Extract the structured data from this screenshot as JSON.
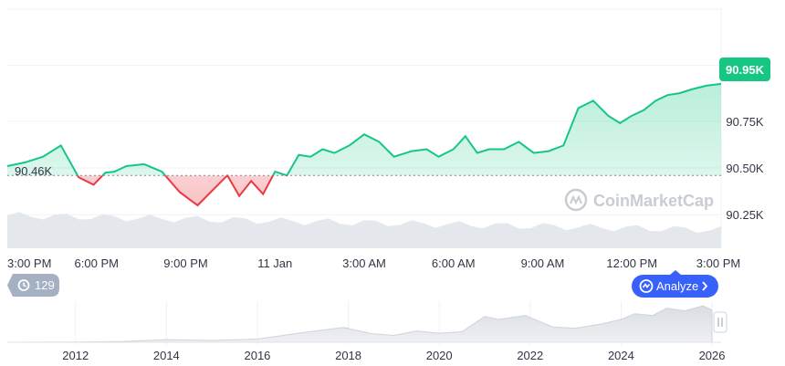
{
  "colors": {
    "up": "#16c784",
    "down": "#ea3943",
    "grid": "#eff2f5",
    "axis_text": "#58667e",
    "badge_bg": "#16c784",
    "analyze_bg": "#3861fb",
    "history_bg": "#a6b0c3"
  },
  "watermark": {
    "text": "CoinMarketCap",
    "icon": "coinmarketcap-logo-icon"
  },
  "history_badge": {
    "icon": "history-icon",
    "value": "129"
  },
  "analyze_button": {
    "icon": "analyze-icon",
    "label": "Analyze",
    "chevron": "chevron-right-icon"
  },
  "current_price_label": "90.95K",
  "reference_label": "90.46K",
  "chart_data": [
    {
      "type": "area",
      "title": "",
      "xlabel": "",
      "ylabel": "",
      "x_ticks": [
        "3:00 PM",
        "6:00 PM",
        "9:00 PM",
        "11 Jan",
        "3:00 AM",
        "6:00 AM",
        "9:00 AM",
        "12:00 PM",
        "3:00 PM"
      ],
      "x_range_hours": [
        0,
        24
      ],
      "y_ticks": [
        "90.25K",
        "90.50K",
        "90.75K"
      ],
      "y_tick_values": [
        90250,
        90500,
        90750
      ],
      "ylim": [
        90080,
        91350
      ],
      "grid": true,
      "reference_value": 90460,
      "current_value": 90950,
      "x": [
        0,
        0.6,
        1.2,
        1.8,
        2.4,
        2.9,
        3.3,
        3.6,
        4.0,
        4.6,
        5.2,
        5.8,
        6.4,
        6.9,
        7.4,
        7.8,
        8.2,
        8.6,
        9.0,
        9.4,
        9.8,
        10.2,
        10.6,
        11.0,
        11.5,
        12.0,
        12.5,
        13.0,
        13.6,
        14.1,
        14.5,
        15.0,
        15.4,
        15.8,
        16.2,
        16.7,
        17.2,
        17.7,
        18.2,
        18.7,
        19.2,
        19.7,
        20.2,
        20.6,
        21.0,
        21.4,
        21.8,
        22.2,
        22.6,
        23.0,
        23.5,
        24.0
      ],
      "values": [
        90510,
        90530,
        90560,
        90620,
        90450,
        90410,
        90475,
        90480,
        90510,
        90520,
        90480,
        90370,
        90300,
        90380,
        90460,
        90350,
        90430,
        90360,
        90480,
        90460,
        90570,
        90560,
        90600,
        90580,
        90620,
        90680,
        90640,
        90560,
        90590,
        90600,
        90560,
        90600,
        90670,
        90580,
        90600,
        90600,
        90640,
        90580,
        90590,
        90620,
        90820,
        90860,
        90780,
        90740,
        90780,
        90810,
        90860,
        90890,
        90900,
        90920,
        90940,
        90950
      ]
    },
    {
      "type": "area",
      "title": "",
      "x_ticks": [
        "2012",
        "2014",
        "2016",
        "2018",
        "2020",
        "2022",
        "2024",
        "2026"
      ],
      "xlim": [
        2010.5,
        2026.2
      ],
      "x": [
        2010.5,
        2012,
        2013,
        2014,
        2015,
        2016,
        2017,
        2017.9,
        2018.5,
        2019,
        2019.5,
        2020,
        2020.5,
        2021,
        2021.3,
        2021.9,
        2022.5,
        2023,
        2023.6,
        2024,
        2024.3,
        2024.7,
        2025,
        2025.4,
        2025.8,
        2026
      ],
      "values": [
        0,
        5,
        50,
        600,
        300,
        900,
        8000,
        19000,
        6500,
        4000,
        11000,
        7000,
        9500,
        58000,
        45000,
        62000,
        20000,
        17000,
        30000,
        45000,
        70000,
        62000,
        100000,
        85000,
        115000,
        90950
      ]
    }
  ]
}
